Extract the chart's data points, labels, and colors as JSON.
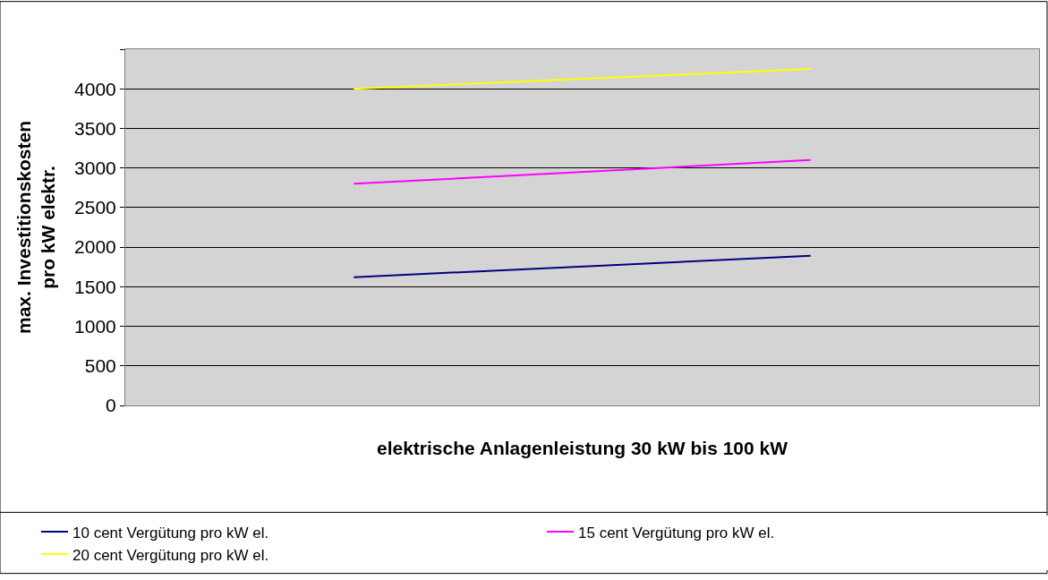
{
  "chart_data": {
    "type": "line",
    "xlabel": "elektrische Anlagenleistung 30 kW bis 100 kW",
    "ylabel": "max. Investitionskosten\npro kW elektr.",
    "categories": [
      null,
      null
    ],
    "series": [
      {
        "name": "10 cent Vergütung pro kW el.",
        "color": "#000080",
        "values": [
          1620,
          1890
        ]
      },
      {
        "name": "15 cent Vergütung pro kW el.",
        "color": "#ff00ff",
        "values": [
          2800,
          3100
        ]
      },
      {
        "name": "20 cent Vergütung pro kW el.",
        "color": "#ffff00",
        "values": [
          4000,
          4250
        ]
      }
    ],
    "ylim": [
      0,
      4500
    ],
    "yticks": [
      0,
      500,
      1000,
      1500,
      2000,
      2500,
      3000,
      3500,
      4000,
      {
        "value": 4500,
        "label": null
      }
    ],
    "grid": "y",
    "legend": "bottom",
    "tick_labels": "y",
    "marker": "none",
    "line_style": "solid"
  }
}
